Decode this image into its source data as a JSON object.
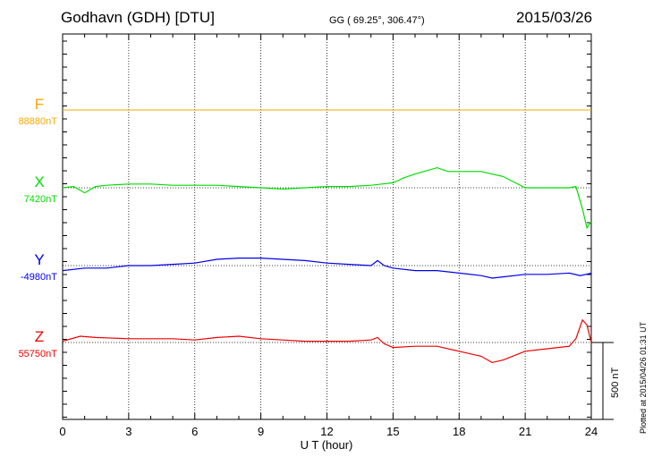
{
  "header": {
    "station": "Godhavn (GDH)  [DTU]",
    "coords": "GG ( 69.25°, 306.47°)",
    "date": "2015/03/26"
  },
  "footer": {
    "plotted": "Plotted at 2015/04/26 01:31  UT",
    "scale_label": "500 nT"
  },
  "colors": {
    "F": "#f5a800",
    "X": "#00dd00",
    "Y": "#0000ee",
    "Z": "#ee0000"
  },
  "chart_data": {
    "type": "line",
    "xlabel": "U T (hour)",
    "ylabel": "",
    "xlim": [
      0,
      24
    ],
    "x_ticks": [
      "0",
      "3",
      "6",
      "9",
      "12",
      "15",
      "18",
      "21",
      "24"
    ],
    "scale_nT": 500,
    "grid": true,
    "series": [
      {
        "name": "F",
        "baseline_label": "88880nT",
        "x": [
          0,
          24
        ],
        "y": [
          88880,
          88880
        ]
      },
      {
        "name": "X",
        "baseline_label": "7420nT",
        "x": [
          0,
          0.5,
          1,
          1.5,
          2,
          3,
          4,
          5,
          6,
          7,
          8,
          9,
          10,
          11,
          12,
          13,
          14,
          14.5,
          15,
          15.5,
          16,
          17,
          17.5,
          18,
          19,
          20,
          21,
          22,
          23,
          23.3,
          23.6,
          23.8,
          24
        ],
        "y": [
          7420,
          7430,
          7380,
          7430,
          7440,
          7450,
          7450,
          7440,
          7440,
          7440,
          7430,
          7420,
          7410,
          7420,
          7430,
          7430,
          7440,
          7450,
          7460,
          7500,
          7530,
          7580,
          7550,
          7550,
          7550,
          7510,
          7420,
          7420,
          7420,
          7430,
          7250,
          7100,
          7150
        ]
      },
      {
        "name": "Y",
        "baseline_label": "-4980nT",
        "x": [
          0,
          1,
          2,
          3,
          4,
          5,
          6,
          7,
          8,
          9,
          10,
          11,
          12,
          13,
          14,
          14.3,
          14.6,
          15,
          16,
          17,
          18,
          19,
          19.5,
          20,
          21,
          22,
          23,
          23.5,
          24
        ],
        "y": [
          -5020,
          -5000,
          -5000,
          -4980,
          -4980,
          -4970,
          -4960,
          -4930,
          -4920,
          -4920,
          -4930,
          -4940,
          -4960,
          -4970,
          -4980,
          -4940,
          -4980,
          -5000,
          -5020,
          -5020,
          -5040,
          -5060,
          -5080,
          -5070,
          -5050,
          -5050,
          -5040,
          -5060,
          -5040
        ]
      },
      {
        "name": "Z",
        "baseline_label": "55750nT",
        "x": [
          0,
          0.8,
          1.5,
          3,
          4,
          5,
          6,
          7,
          8,
          9,
          10,
          11,
          12,
          13,
          14,
          14.3,
          14.6,
          15,
          16,
          17,
          18,
          19,
          19.5,
          20,
          21,
          22,
          23,
          23.3,
          23.6,
          23.8,
          24
        ],
        "y": [
          55760,
          55800,
          55790,
          55780,
          55780,
          55780,
          55770,
          55790,
          55800,
          55780,
          55770,
          55760,
          55760,
          55760,
          55770,
          55790,
          55740,
          55710,
          55720,
          55720,
          55680,
          55640,
          55590,
          55610,
          55680,
          55700,
          55720,
          55780,
          55930,
          55890,
          55750
        ]
      }
    ]
  }
}
